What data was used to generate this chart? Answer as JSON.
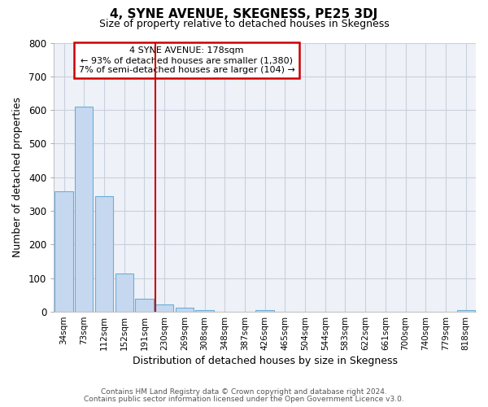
{
  "title": "4, SYNE AVENUE, SKEGNESS, PE25 3DJ",
  "subtitle": "Size of property relative to detached houses in Skegness",
  "xlabel": "Distribution of detached houses by size in Skegness",
  "ylabel": "Number of detached properties",
  "bar_labels": [
    "34sqm",
    "73sqm",
    "112sqm",
    "152sqm",
    "191sqm",
    "230sqm",
    "269sqm",
    "308sqm",
    "348sqm",
    "387sqm",
    "426sqm",
    "465sqm",
    "504sqm",
    "544sqm",
    "583sqm",
    "622sqm",
    "661sqm",
    "700sqm",
    "740sqm",
    "779sqm",
    "818sqm"
  ],
  "bar_values": [
    358,
    610,
    345,
    115,
    40,
    22,
    13,
    5,
    0,
    0,
    5,
    0,
    0,
    0,
    0,
    0,
    0,
    0,
    0,
    0,
    5
  ],
  "bar_color": "#c5d8f0",
  "bar_edgecolor": "#6baed6",
  "vline_x": 4.55,
  "vline_color": "#cc0000",
  "annotation_title": "4 SYNE AVENUE: 178sqm",
  "annotation_line1": "← 93% of detached houses are smaller (1,380)",
  "annotation_line2": "7% of semi-detached houses are larger (104) →",
  "annotation_box_color": "#cc0000",
  "ylim": [
    0,
    800
  ],
  "yticks": [
    0,
    100,
    200,
    300,
    400,
    500,
    600,
    700,
    800
  ],
  "footnote1": "Contains HM Land Registry data © Crown copyright and database right 2024.",
  "footnote2": "Contains public sector information licensed under the Open Government Licence v3.0.",
  "background_color": "#ffffff",
  "plot_bg_color": "#eef2f8",
  "grid_color": "#c8d0dc"
}
